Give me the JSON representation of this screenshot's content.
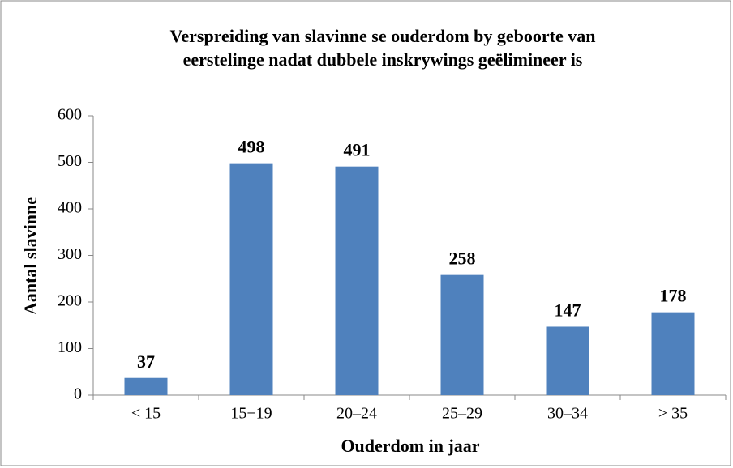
{
  "chart_data": {
    "type": "bar",
    "title": [
      "Verspreiding van slavinne se ouderdom by geboorte van",
      "eerstelinge nadat dubbele inskrywings geëlimineer is"
    ],
    "xlabel": "Ouderdom in jaar",
    "ylabel": "Aantal slavinne",
    "categories": [
      "< 15",
      "15−19",
      "20–24",
      "25–29",
      "30–34",
      "> 35"
    ],
    "values": [
      37,
      498,
      491,
      258,
      147,
      178
    ],
    "color": "#4f81bd",
    "ylim": [
      0,
      600
    ],
    "yticks": [
      0,
      100,
      200,
      300,
      400,
      500,
      600
    ],
    "grid": false
  }
}
